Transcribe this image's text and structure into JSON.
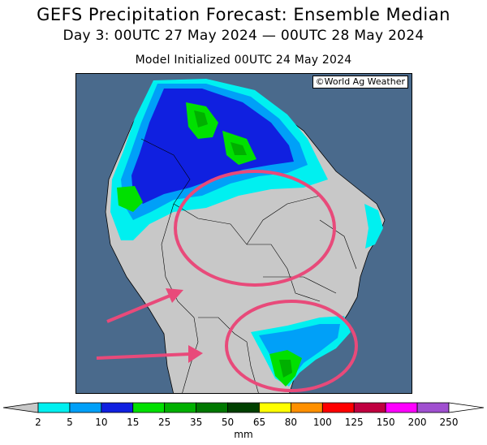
{
  "header": {
    "title": "GEFS Precipitation Forecast: Ensemble Median",
    "period": "Day 3: 00UTC 27 May 2024 — 00UTC 28 May 2024",
    "init": "Model Initialized 00UTC 24 May 2024"
  },
  "map": {
    "credit": "©World Ag Weather",
    "ocean_color": "#4a6a8c",
    "dry_land_color": "#c8c8c8"
  },
  "legend": {
    "unit": "mm",
    "levels": [
      "2",
      "5",
      "10",
      "15",
      "25",
      "35",
      "50",
      "65",
      "80",
      "100",
      "125",
      "150",
      "200",
      "250"
    ],
    "colors": [
      "#00f0f0",
      "#00a0f8",
      "#1020e0",
      "#00e000",
      "#00b000",
      "#007800",
      "#004000",
      "#ffff00",
      "#ff9000",
      "#ff0000",
      "#c00040",
      "#ff00ff",
      "#a050d0"
    ]
  },
  "annotations": {
    "color": "#e84a7a"
  }
}
